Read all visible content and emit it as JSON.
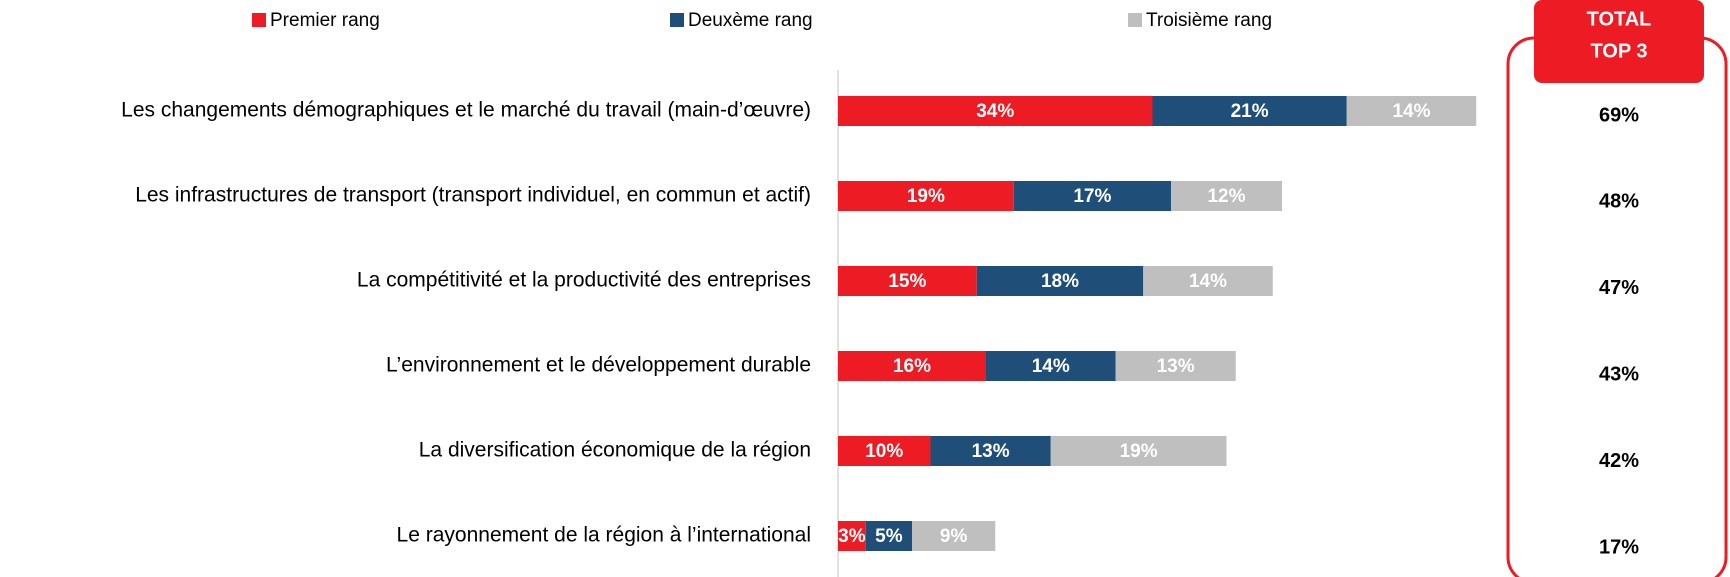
{
  "chart_data": {
    "type": "bar",
    "orientation": "horizontal",
    "stacked": true,
    "legend": "top",
    "categories": [
      "Les changements démographiques et le marché du travail (main-d’œuvre)",
      "Les infrastructures de transport (transport individuel, en commun et actif)",
      "La compétitivité et la productivité des entreprises",
      "L’environnement et le développement durable",
      "La diversification économique de la région",
      "Le rayonnement de la région à l’international"
    ],
    "series": [
      {
        "name": "Premier rang",
        "color": "#ed1c24",
        "values": [
          34,
          19,
          15,
          16,
          10,
          3
        ],
        "value_labels": [
          "34%",
          "19%",
          "15%",
          "16%",
          "10%",
          "3%"
        ]
      },
      {
        "name": "Deuxème rang",
        "color": "#1f4e79",
        "values": [
          21,
          17,
          18,
          14,
          13,
          5
        ],
        "value_labels": [
          "21%",
          "17%",
          "18%",
          "14%",
          "13%",
          "5%"
        ]
      },
      {
        "name": "Troisième rang",
        "color": "#bfbfbf",
        "values": [
          14,
          12,
          14,
          13,
          19,
          9
        ],
        "value_labels": [
          "14%",
          "12%",
          "14%",
          "13%",
          "19%",
          "9%"
        ]
      }
    ],
    "total": {
      "title_lines": [
        "TOTAL",
        "TOP 3"
      ],
      "color": "#ed1c24",
      "values": [
        69,
        48,
        47,
        43,
        42,
        17
      ],
      "value_labels": [
        "69%",
        "48%",
        "47%",
        "43%",
        "42%",
        "17%"
      ]
    }
  }
}
